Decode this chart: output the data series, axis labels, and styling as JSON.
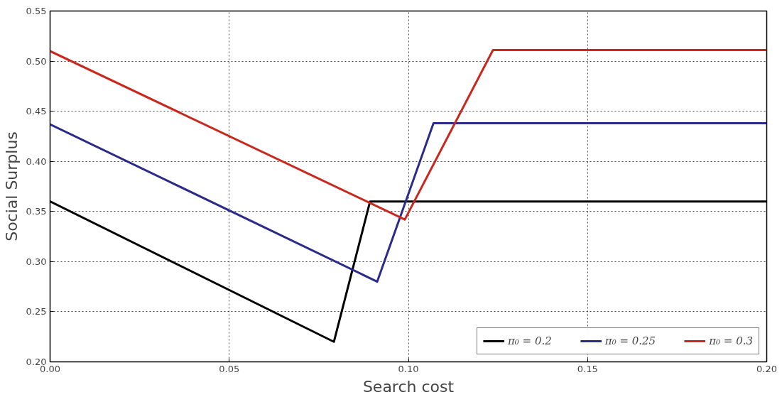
{
  "chart_data": {
    "type": "line",
    "xlabel": "Search cost",
    "ylabel": "Social Surplus",
    "series": [
      {
        "name": "π₀ = 0.2",
        "color": "#000000",
        "x": [
          0,
          0.0792,
          0.0893,
          0.2
        ],
        "values": [
          0.36,
          0.22,
          0.36,
          0.36
        ]
      },
      {
        "name": "π₀ = 0.25",
        "color": "#2b2b8a",
        "x": [
          0,
          0.0913,
          0.107,
          0.2
        ],
        "values": [
          0.437,
          0.28,
          0.438,
          0.438
        ]
      },
      {
        "name": "π₀ = 0.3",
        "color": "#c8281e",
        "x": [
          0,
          0.099,
          0.1236,
          0.2
        ],
        "values": [
          0.51,
          0.342,
          0.511,
          0.511
        ]
      }
    ],
    "xlim": [
      0,
      0.2
    ],
    "ylim": [
      0.2,
      0.55
    ],
    "xticks": [
      {
        "value": 0,
        "label": "0.00"
      },
      {
        "value": 0.05,
        "label": "0.05"
      },
      {
        "value": 0.1,
        "label": "0.10"
      },
      {
        "value": 0.15,
        "label": "0.15"
      },
      {
        "value": 0.2,
        "label": "0.20"
      }
    ],
    "yticks": [
      {
        "value": 0.2,
        "label": "0.20"
      },
      {
        "value": 0.25,
        "label": "0.25"
      },
      {
        "value": 0.3,
        "label": "0.30"
      },
      {
        "value": 0.35,
        "label": "0.35"
      },
      {
        "value": 0.4,
        "label": "0.40"
      },
      {
        "value": 0.45,
        "label": "0.45"
      },
      {
        "value": 0.5,
        "label": "0.50"
      },
      {
        "value": 0.55,
        "label": "0.55"
      }
    ],
    "grid": true,
    "legend": "bottom right",
    "line_style": "solid",
    "marker": "none"
  }
}
